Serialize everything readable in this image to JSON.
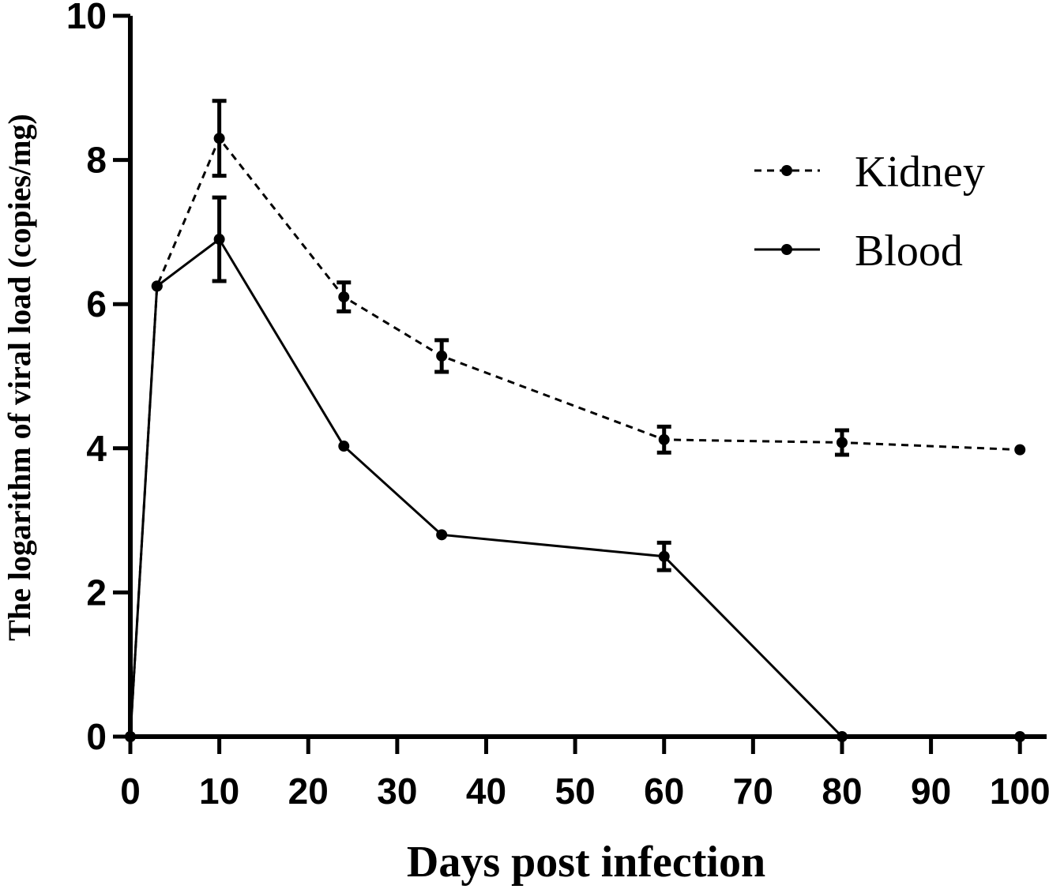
{
  "chart_data": {
    "type": "line",
    "title": "",
    "xlabel": "Days post infection",
    "ylabel": "The logarithm of viral load (copies/mg)",
    "xlim": [
      0,
      103
    ],
    "ylim": [
      0,
      10
    ],
    "xticks": [
      0,
      10,
      20,
      30,
      40,
      50,
      60,
      70,
      80,
      90,
      100
    ],
    "yticks": [
      0,
      2,
      4,
      6,
      8,
      10
    ],
    "grid": false,
    "legend_position": "top-right",
    "series": [
      {
        "name": "Kidney",
        "style": "dashed",
        "x": [
          0,
          3,
          10,
          24,
          35,
          60,
          80,
          100
        ],
        "y": [
          0,
          6.25,
          8.3,
          6.1,
          5.28,
          4.12,
          4.08,
          3.98
        ],
        "err": [
          0,
          0,
          0.52,
          0.2,
          0.22,
          0.18,
          0.17,
          0
        ]
      },
      {
        "name": "Blood",
        "style": "solid",
        "x": [
          0,
          3,
          10,
          24,
          35,
          60,
          80,
          100
        ],
        "y": [
          0,
          6.25,
          6.9,
          4.03,
          2.8,
          2.5,
          0,
          0
        ],
        "err": [
          0,
          0,
          0.58,
          0,
          0,
          0.19,
          0,
          0
        ]
      }
    ]
  }
}
